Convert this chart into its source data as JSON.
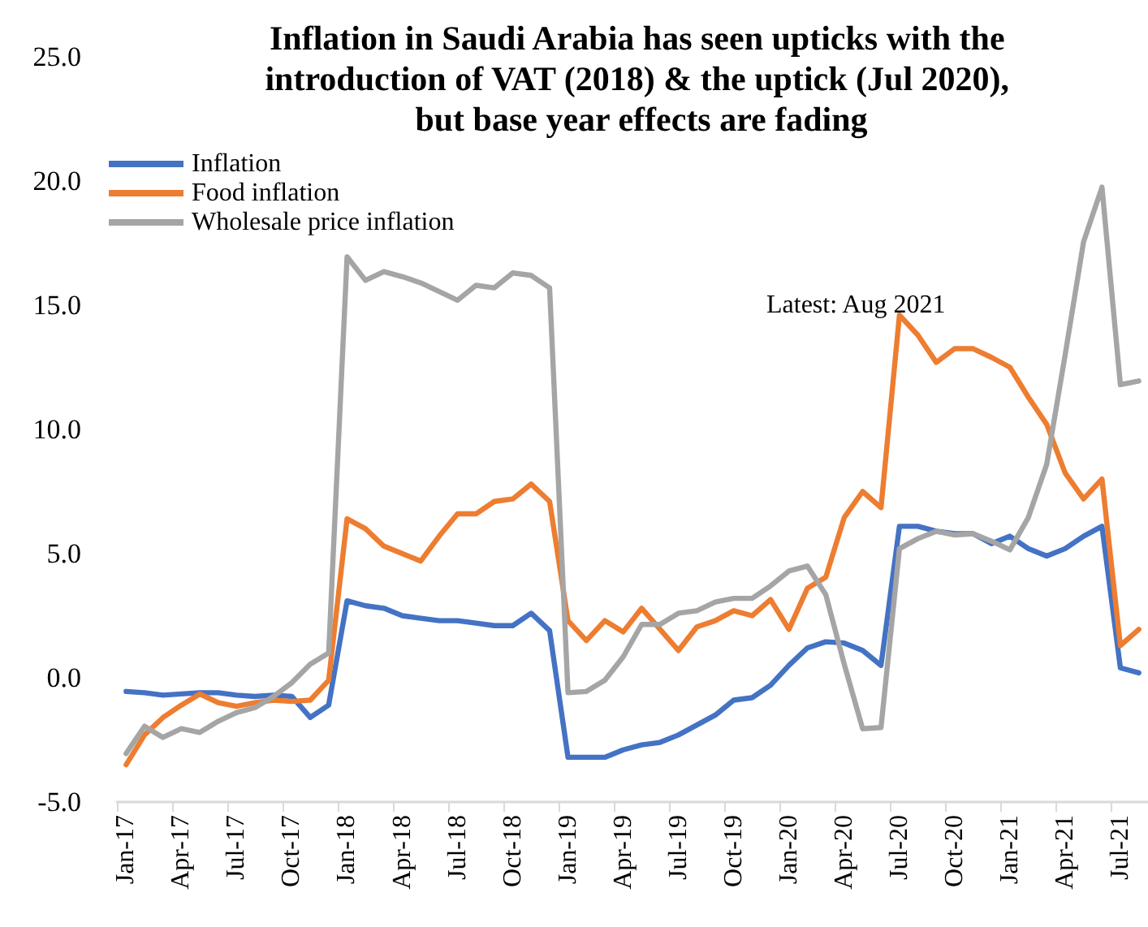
{
  "chart_data": {
    "type": "line",
    "title": "Inflation in Saudi Arabia has seen upticks with the introduction of VAT (2018) & the uptick (Jul 2020), but base year effects are fading",
    "categories": [
      "Jan-17",
      null,
      null,
      "Apr-17",
      null,
      null,
      "Jul-17",
      null,
      null,
      "Oct-17",
      null,
      null,
      "Jan-18",
      null,
      null,
      "Apr-18",
      null,
      null,
      "Jul-18",
      null,
      null,
      "Oct-18",
      null,
      null,
      "Jan-19",
      null,
      null,
      "Apr-19",
      null,
      null,
      "Jul-19",
      null,
      null,
      "Oct-19",
      null,
      null,
      "Jan-20",
      null,
      null,
      "Apr-20",
      null,
      null,
      "Jul-20",
      null,
      null,
      "Oct-20",
      null,
      null,
      "Jan-21",
      null,
      null,
      "Apr-21",
      null,
      null,
      "Jul-21",
      null
    ],
    "series": [
      {
        "name": "Inflation",
        "color": "#4472c4",
        "values": [
          -0.55,
          -0.6,
          -0.7,
          -0.65,
          -0.6,
          -0.6,
          -0.7,
          -0.75,
          -0.7,
          -0.75,
          -1.6,
          -1.1,
          3.1,
          2.9,
          2.8,
          2.5,
          2.4,
          2.3,
          2.3,
          2.2,
          2.1,
          2.1,
          2.6,
          1.9,
          -3.2,
          -3.2,
          -3.2,
          -2.9,
          -2.7,
          -2.6,
          -2.3,
          -1.9,
          -1.5,
          -0.9,
          -0.8,
          -0.3,
          0.5,
          1.2,
          1.45,
          1.4,
          1.1,
          0.5,
          6.1,
          6.1,
          5.9,
          5.8,
          5.8,
          5.4,
          5.7,
          5.2,
          4.9,
          5.2,
          5.7,
          6.1,
          0.4,
          0.2
        ]
      },
      {
        "name": "Food inflation",
        "color": "#ed7d31",
        "values": [
          -3.5,
          -2.3,
          -1.6,
          -1.1,
          -0.65,
          -1.0,
          -1.15,
          -1.0,
          -0.9,
          -0.95,
          -0.9,
          -0.1,
          6.4,
          6.0,
          5.3,
          5.0,
          4.7,
          5.7,
          6.6,
          6.6,
          7.1,
          7.2,
          7.8,
          7.1,
          2.3,
          1.5,
          2.3,
          1.85,
          2.8,
          1.95,
          1.1,
          2.05,
          2.3,
          2.7,
          2.5,
          3.15,
          1.95,
          3.6,
          4.05,
          6.45,
          7.5,
          6.85,
          14.6,
          13.8,
          12.7,
          13.25,
          13.25,
          12.9,
          12.5,
          11.3,
          10.2,
          8.25,
          7.2,
          8.0,
          1.3,
          1.95
        ]
      },
      {
        "name": "Wholesale price inflation",
        "color": "#a5a5a5",
        "values": [
          -3.05,
          -1.95,
          -2.4,
          -2.05,
          -2.2,
          -1.75,
          -1.4,
          -1.2,
          -0.75,
          -0.2,
          0.55,
          1.0,
          16.95,
          16.0,
          16.35,
          16.15,
          15.9,
          15.55,
          15.2,
          15.8,
          15.7,
          16.3,
          16.2,
          15.7,
          -0.6,
          -0.55,
          -0.1,
          0.85,
          2.15,
          2.15,
          2.6,
          2.7,
          3.05,
          3.2,
          3.2,
          3.7,
          4.3,
          4.5,
          3.35,
          0.55,
          -2.05,
          -2.0,
          5.2,
          5.6,
          5.9,
          5.75,
          5.8,
          5.5,
          5.15,
          6.45,
          8.6,
          13.0,
          17.55,
          19.75,
          11.8,
          11.95
        ]
      }
    ],
    "ylim": [
      -5,
      25
    ],
    "yticks": [
      {
        "value": -5,
        "label": "-5.0"
      },
      {
        "value": 0,
        "label": "0.0"
      },
      {
        "value": 5,
        "label": "5.0"
      },
      {
        "value": 10,
        "label": "10.0"
      },
      {
        "value": 15,
        "label": "15.0"
      },
      {
        "value": 20,
        "label": "20.0"
      },
      {
        "value": 25,
        "label": "25.0"
      }
    ],
    "annotations": [
      "Latest: Aug 2021"
    ],
    "legend": "top left",
    "grid": false,
    "marker": "none",
    "line_style": "solid"
  }
}
